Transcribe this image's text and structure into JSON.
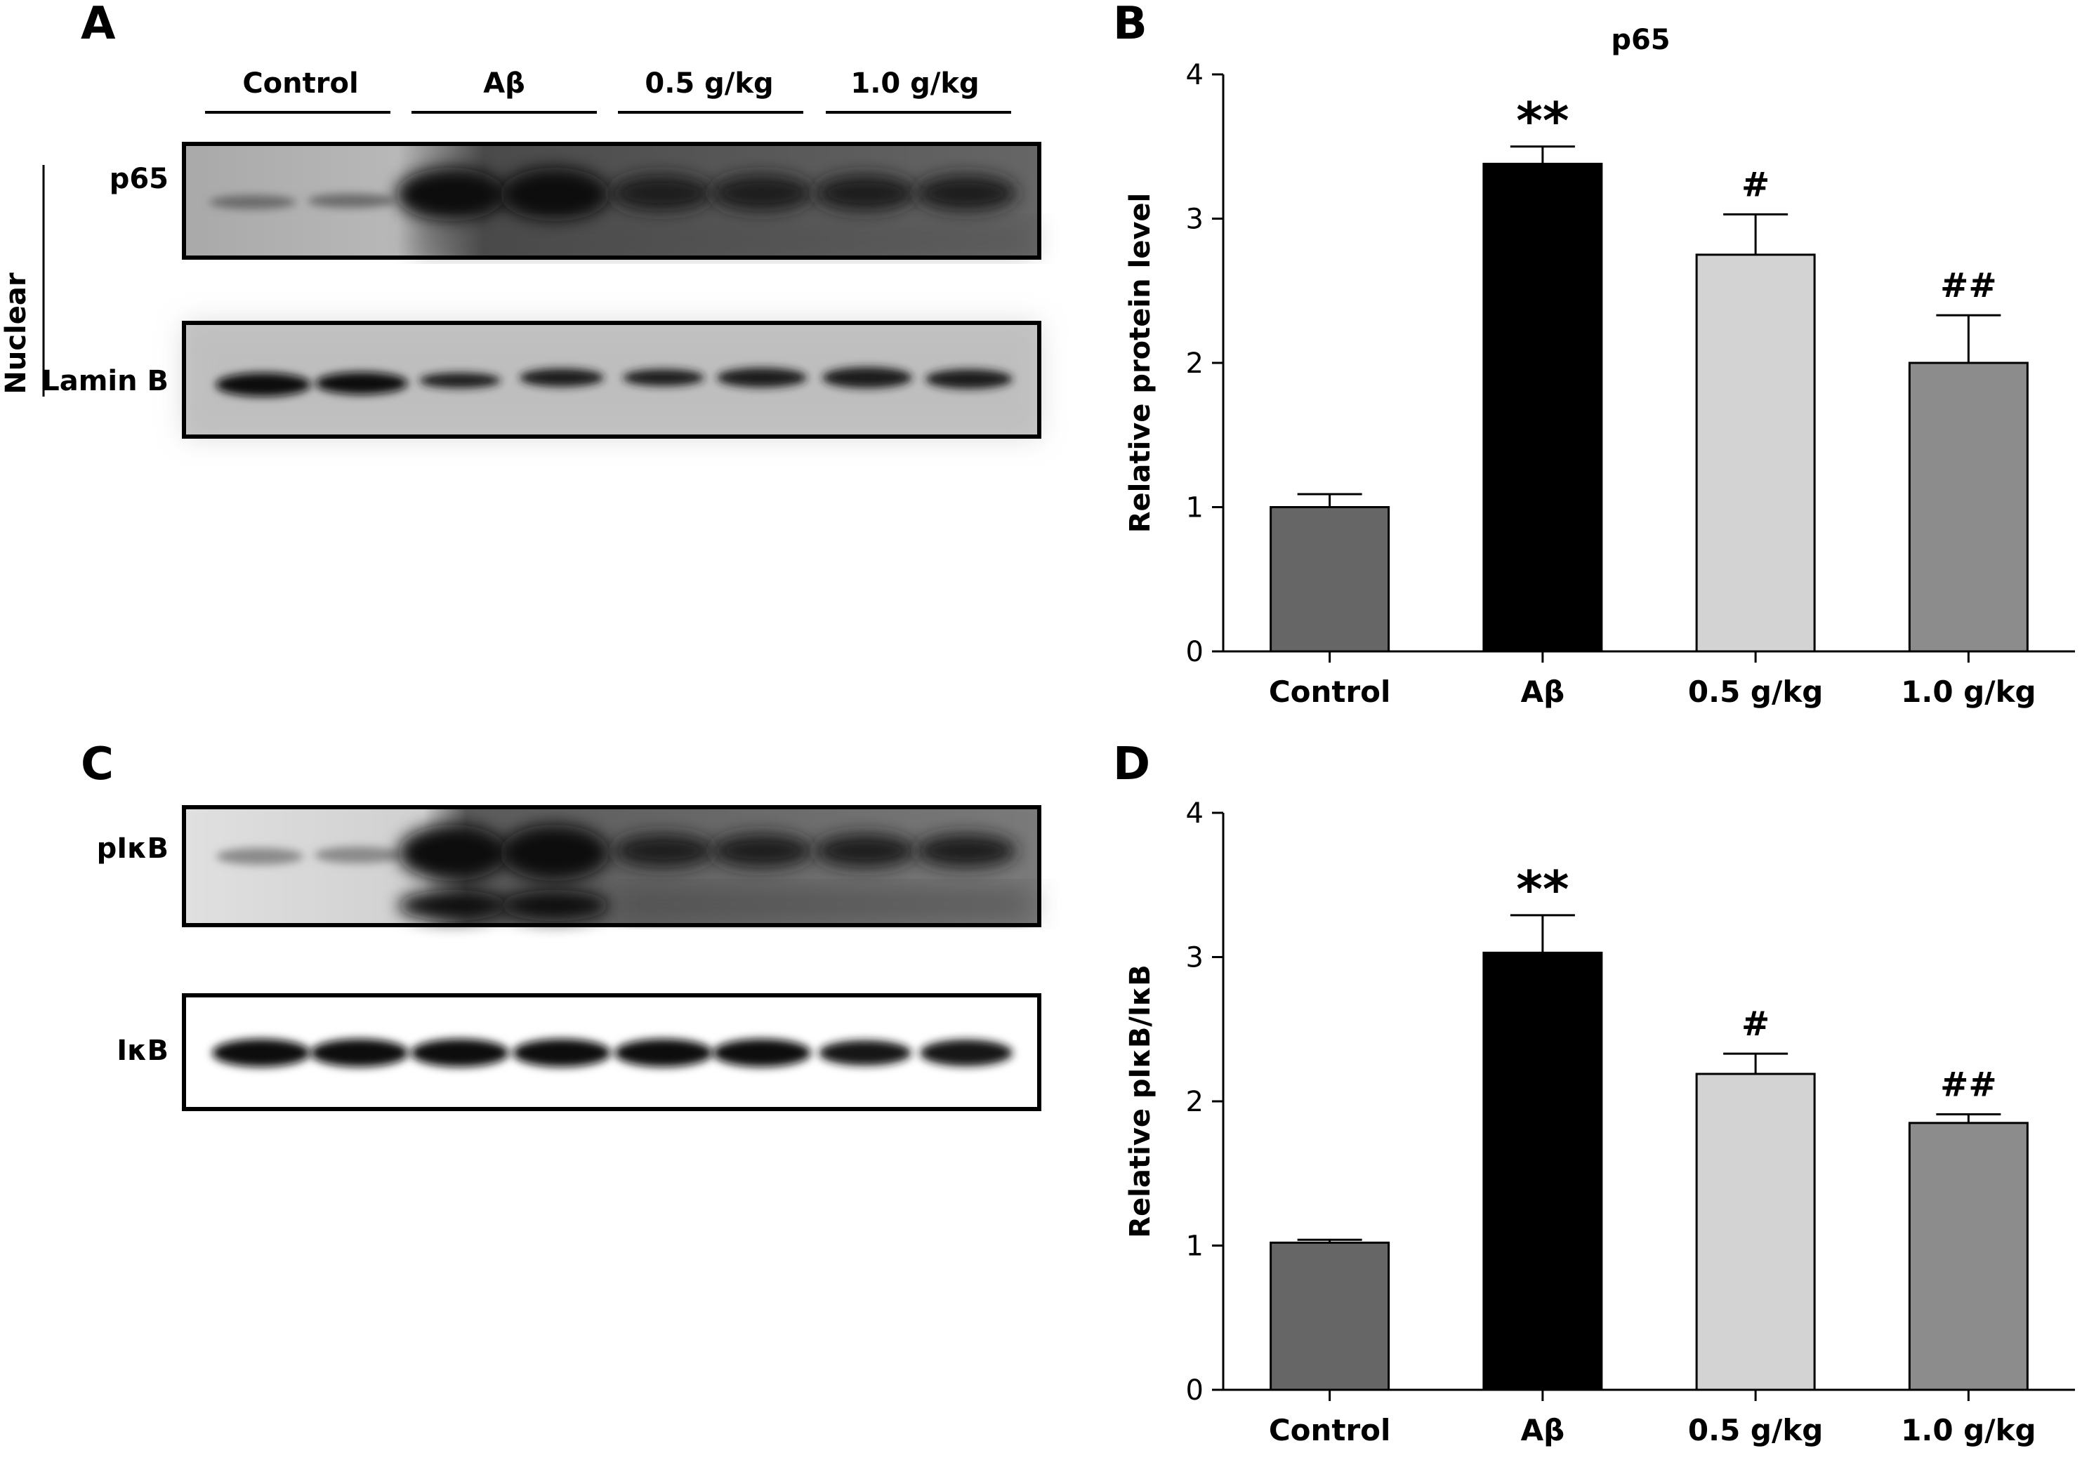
{
  "panels": {
    "a": "A",
    "b": "B",
    "c": "C",
    "d": "D"
  },
  "blot_a": {
    "groups": [
      "Control",
      "Aβ",
      "0.5 g/kg",
      "1.0 g/kg"
    ],
    "rows": [
      "p65",
      "Lamin B"
    ],
    "fraction": "Nuclear"
  },
  "blot_c": {
    "rows": [
      "pIκB",
      "IκB"
    ]
  },
  "chart_data": [
    {
      "type": "bar",
      "title": "p65",
      "ylabel": "Relative protein level",
      "xlabel": "",
      "categories": [
        "Control",
        "Aβ",
        "0.5 g/kg",
        "1.0 g/kg"
      ],
      "values": [
        1.0,
        3.38,
        2.75,
        2.0
      ],
      "errors": [
        0.09,
        0.12,
        0.28,
        0.33
      ],
      "annotations": [
        "",
        "**",
        "#",
        "##"
      ],
      "colors": [
        "#666666",
        "#000000",
        "#d3d3d3",
        "#8c8c8c"
      ],
      "ylim": [
        0,
        4
      ],
      "yticks": [
        0,
        1,
        2,
        3,
        4
      ]
    },
    {
      "type": "bar",
      "title": "",
      "ylabel": "Relative pIκB/IκB",
      "xlabel": "",
      "categories": [
        "Control",
        "Aβ",
        "0.5 g/kg",
        "1.0 g/kg"
      ],
      "values": [
        1.02,
        3.03,
        2.19,
        1.85
      ],
      "errors": [
        0.02,
        0.26,
        0.14,
        0.06
      ],
      "annotations": [
        "",
        "**",
        "#",
        "##"
      ],
      "colors": [
        "#666666",
        "#000000",
        "#d3d3d3",
        "#8c8c8c"
      ],
      "ylim": [
        0,
        4
      ],
      "yticks": [
        0,
        1,
        2,
        3,
        4
      ]
    }
  ]
}
